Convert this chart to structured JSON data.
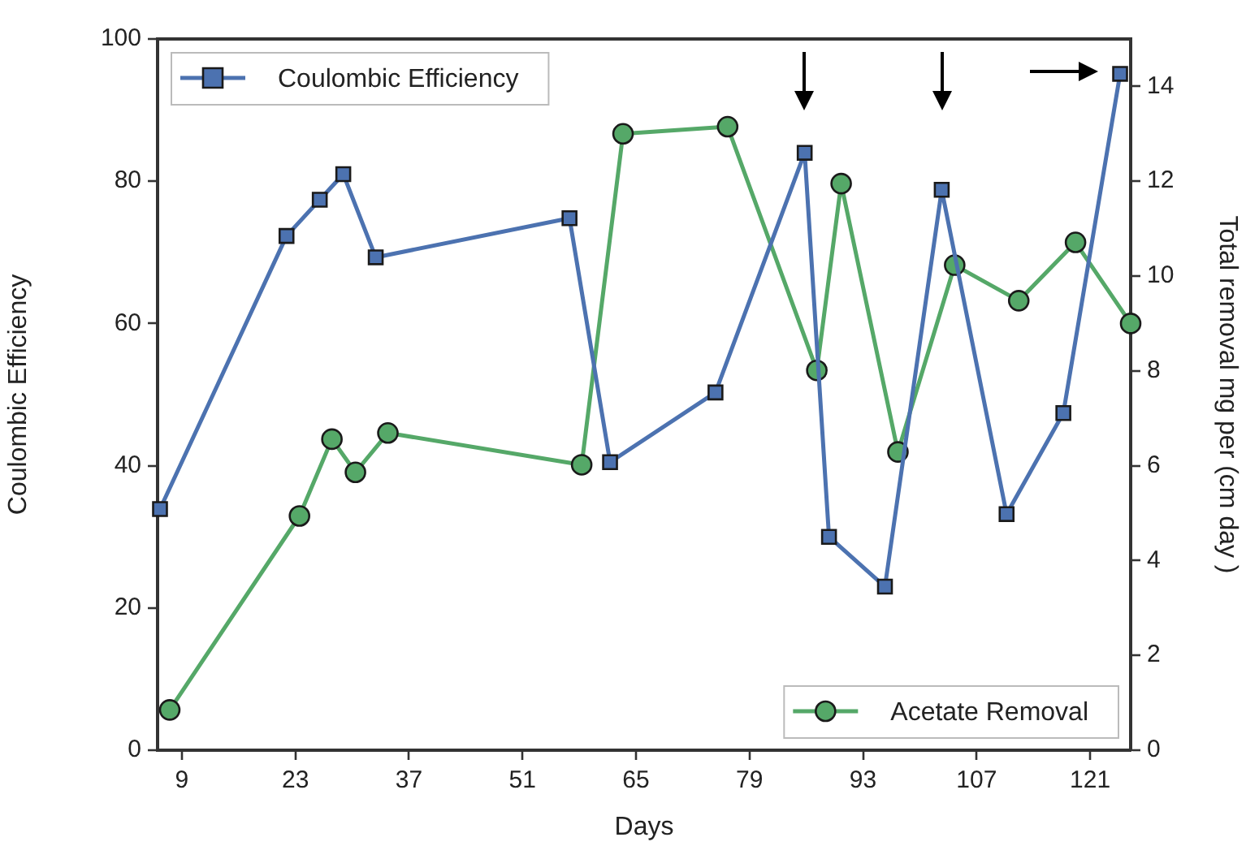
{
  "chart_data": {
    "type": "line",
    "xlabel": "Days",
    "ylabel": "Coulombic Efficiency",
    "y2label": "Total removal mg per (cm day )",
    "xlim": [
      6,
      126
    ],
    "xticks": [
      9,
      23,
      37,
      51,
      65,
      79,
      93,
      107,
      121
    ],
    "ylim": [
      0,
      100
    ],
    "yticks": [
      0,
      20,
      40,
      60,
      80,
      100
    ],
    "y2lim": [
      0,
      15
    ],
    "y2ticks": [
      0,
      2,
      4,
      6,
      8,
      10,
      12,
      14
    ],
    "grid": false,
    "legend": "top left",
    "series": [
      {
        "name": "Coulombic Efficiency",
        "color": "#4c72b0",
        "marker": "square",
        "x": [
          6.3,
          21.9,
          26.0,
          28.9,
          32.9,
          56.8,
          61.8,
          74.8,
          85.8,
          88.8,
          95.7,
          102.7,
          110.7,
          117.7,
          124.7
        ],
        "values": [
          33.9,
          72.3,
          77.4,
          81.0,
          69.3,
          74.8,
          40.5,
          50.3,
          84.0,
          30.0,
          23.0,
          78.8,
          33.2,
          47.4,
          95.1
        ]
      },
      {
        "name": "Acetate Removal",
        "color": "#55a868",
        "marker": "circle",
        "axis": "y2",
        "x": [
          7.5,
          23.5,
          27.5,
          30.4,
          34.4,
          58.3,
          63.4,
          76.3,
          87.3,
          90.3,
          97.3,
          104.3,
          112.2,
          119.2,
          126.0
        ],
        "values": [
          0.85,
          4.94,
          6.56,
          5.86,
          6.69,
          6.02,
          13.0,
          13.15,
          8.01,
          11.95,
          6.29,
          10.23,
          9.48,
          10.71,
          9.0
        ]
      }
    ]
  }
}
